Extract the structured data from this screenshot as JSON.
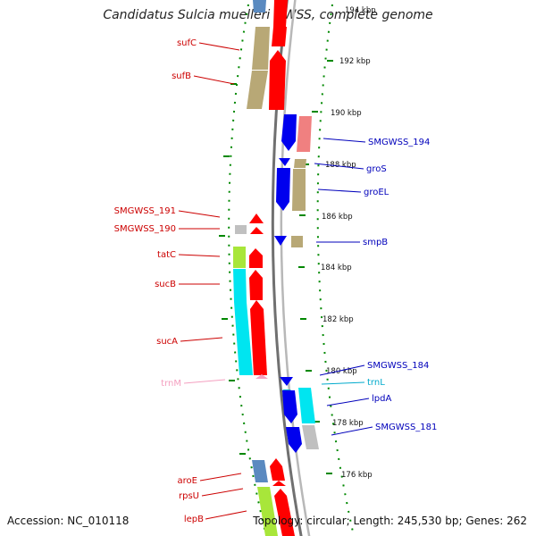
{
  "title": "Candidatus Sulcia muelleri GWSS, complete genome",
  "accession": "Accession: NC_010118",
  "summary": "Topology: circular; Length: 245,530 bp; Genes: 262",
  "kbp_labels": [
    "194 kbp",
    "192 kbp",
    "190 kbp",
    "188 kbp",
    "186 kbp",
    "184 kbp",
    "182 kbp",
    "180 kbp",
    "178 kbp",
    "176 kbp"
  ],
  "gene_labels_left": [
    "sufC",
    "sufB",
    "SMGWSS_191",
    "SMGWSS_190",
    "tatC",
    "sucB",
    "sucA",
    "trnM",
    "aroE",
    "rpsU",
    "lepB"
  ],
  "gene_labels_right": [
    "SMGWSS_194",
    "groS",
    "groEL",
    "smpB",
    "SMGWSS_184",
    "trnL",
    "lpdA",
    "SMGWSS_181"
  ],
  "colors": {
    "forward": "#ff0000",
    "reverse": "#0000ee",
    "cog_tan": "#b8a876",
    "cog_cyan": "#00e5f0",
    "cog_green": "#a8e63a",
    "cog_pink": "#f08080",
    "cog_grey": "#c0c0c0",
    "cog_steel": "#5a8ac0",
    "rna": "#f4a0c0",
    "label_left": "#cc0000",
    "label_right": "#0000bb",
    "backbone": "#888888",
    "ticks": "#008800"
  }
}
